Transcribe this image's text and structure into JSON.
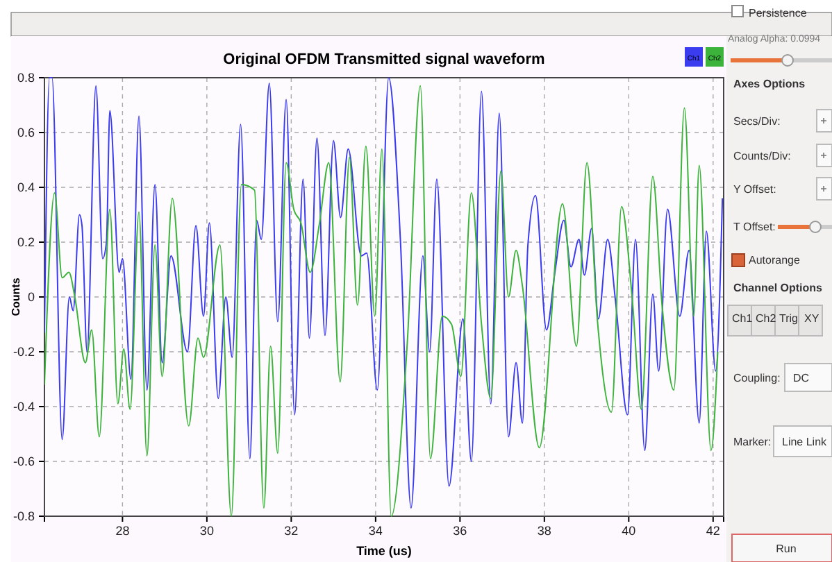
{
  "chart_data": {
    "type": "line",
    "title": "Original OFDM Transmitted signal waveform",
    "xlabel": "Time (us)",
    "ylabel": "Counts",
    "xlim": [
      26.15,
      42.25
    ],
    "xticks": [
      28,
      30,
      32,
      34,
      36,
      38,
      40,
      42
    ],
    "ylim": [
      -0.8,
      0.8
    ],
    "yticks": [
      -0.8,
      -0.6,
      -0.4,
      -0.2,
      0,
      0.2,
      0.4,
      0.6,
      0.8
    ],
    "grid": true,
    "legend": "top right",
    "marker": "none",
    "line_style": "solid",
    "series": [
      {
        "name": "Ch1",
        "color": "#3b3bf0",
        "x": [
          26.15,
          26.27,
          26.33,
          26.57,
          26.74,
          26.83,
          26.98,
          27.04,
          27.16,
          27.37,
          27.53,
          27.62,
          27.7,
          27.92,
          28.0,
          28.2,
          28.39,
          28.58,
          28.77,
          28.94,
          29.15,
          29.54,
          29.74,
          29.92,
          30.06,
          30.27,
          30.45,
          30.6,
          30.8,
          31.02,
          31.18,
          31.29,
          31.48,
          31.68,
          31.88,
          32.08,
          32.28,
          32.43,
          32.61,
          32.8,
          33.0,
          33.17,
          33.35,
          33.66,
          33.79,
          34.04,
          34.31,
          34.59,
          34.84,
          35.12,
          35.28,
          35.45,
          35.74,
          36.07,
          36.27,
          36.51,
          36.73,
          36.93,
          37.15,
          37.33,
          37.48,
          37.61,
          37.79,
          38.05,
          38.25,
          38.46,
          38.63,
          38.82,
          38.95,
          39.12,
          39.28,
          39.5,
          39.69,
          39.97,
          40.16,
          40.38,
          40.57,
          40.71,
          40.92,
          41.21,
          41.43,
          41.67,
          41.84,
          42.06,
          42.22
        ],
        "values": [
          -0.13,
          0.8,
          0.8,
          -0.52,
          0.0,
          -0.05,
          0.3,
          0.26,
          -0.2,
          0.77,
          0.14,
          0.2,
          0.68,
          0.09,
          0.14,
          -0.3,
          0.66,
          -0.34,
          0.41,
          -0.24,
          0.15,
          -0.2,
          0.26,
          -0.07,
          0.27,
          -0.37,
          0.0,
          -0.22,
          0.63,
          -0.59,
          0.28,
          0.21,
          0.78,
          -0.09,
          0.72,
          -0.43,
          0.43,
          -0.15,
          0.58,
          -0.14,
          0.57,
          0.29,
          0.54,
          0.15,
          0.16,
          -0.34,
          0.8,
          0.2,
          -0.77,
          0.15,
          -0.2,
          0.43,
          -0.69,
          -0.08,
          -0.6,
          0.75,
          -0.39,
          0.67,
          -0.51,
          -0.24,
          -0.46,
          0.19,
          0.37,
          -0.12,
          0.09,
          0.28,
          0.11,
          0.21,
          0.08,
          0.25,
          -0.08,
          0.21,
          -0.02,
          -0.43,
          0.21,
          -0.56,
          0.01,
          -0.27,
          0.32,
          -0.07,
          0.17,
          -0.46,
          0.24,
          -0.27,
          0.36
        ]
      },
      {
        "name": "Ch2",
        "color": "#3cb43c",
        "x": [
          26.15,
          26.39,
          26.57,
          26.73,
          26.87,
          27.12,
          27.27,
          27.45,
          27.7,
          27.89,
          28.03,
          28.18,
          28.39,
          28.58,
          28.77,
          28.94,
          29.18,
          29.57,
          29.79,
          29.92,
          30.31,
          30.58,
          30.82,
          31.13,
          31.35,
          31.51,
          31.68,
          31.88,
          32.06,
          32.23,
          32.45,
          32.67,
          32.89,
          33.16,
          33.38,
          33.57,
          33.77,
          33.98,
          34.15,
          34.37,
          34.75,
          35.06,
          35.3,
          35.58,
          35.8,
          36.02,
          36.27,
          36.51,
          36.73,
          36.97,
          37.15,
          37.33,
          37.48,
          37.88,
          38.43,
          38.76,
          39.01,
          39.26,
          39.59,
          39.83,
          40.08,
          40.3,
          40.57,
          40.79,
          41.07,
          41.32,
          41.54,
          41.67,
          41.95,
          42.11
        ],
        "values": [
          -0.32,
          0.38,
          0.07,
          0.09,
          0.0,
          -0.24,
          -0.12,
          -0.51,
          0.32,
          -0.39,
          -0.19,
          -0.41,
          0.31,
          -0.58,
          0.19,
          -0.29,
          0.36,
          -0.47,
          -0.15,
          -0.22,
          0.19,
          -0.8,
          0.41,
          0.39,
          -0.77,
          -0.18,
          -0.57,
          0.49,
          0.32,
          0.27,
          0.09,
          0.27,
          0.49,
          -0.31,
          0.51,
          -0.03,
          0.55,
          -0.07,
          0.54,
          -0.8,
          -0.17,
          0.77,
          -0.59,
          -0.07,
          -0.1,
          -0.29,
          0.38,
          -0.1,
          -0.37,
          0.46,
          0.0,
          0.17,
          0.04,
          -0.55,
          0.34,
          -0.18,
          0.49,
          -0.09,
          -0.42,
          0.33,
          0.0,
          -0.41,
          0.44,
          -0.03,
          -0.34,
          0.69,
          -0.07,
          0.48,
          -0.56,
          -0.2
        ]
      }
    ],
    "annotations": [
      "Persistence",
      "Analog Alpha: 0.0994",
      "Axes Options",
      "Secs/Div:",
      "Counts/Div:",
      "Y Offset:",
      "T Offset:",
      "Autorange",
      "Channel Options",
      "Ch1",
      "Ch2",
      "Trig",
      "XY",
      "Coupling:",
      "DC",
      "Marker:",
      "Line Link",
      "Run"
    ]
  }
}
